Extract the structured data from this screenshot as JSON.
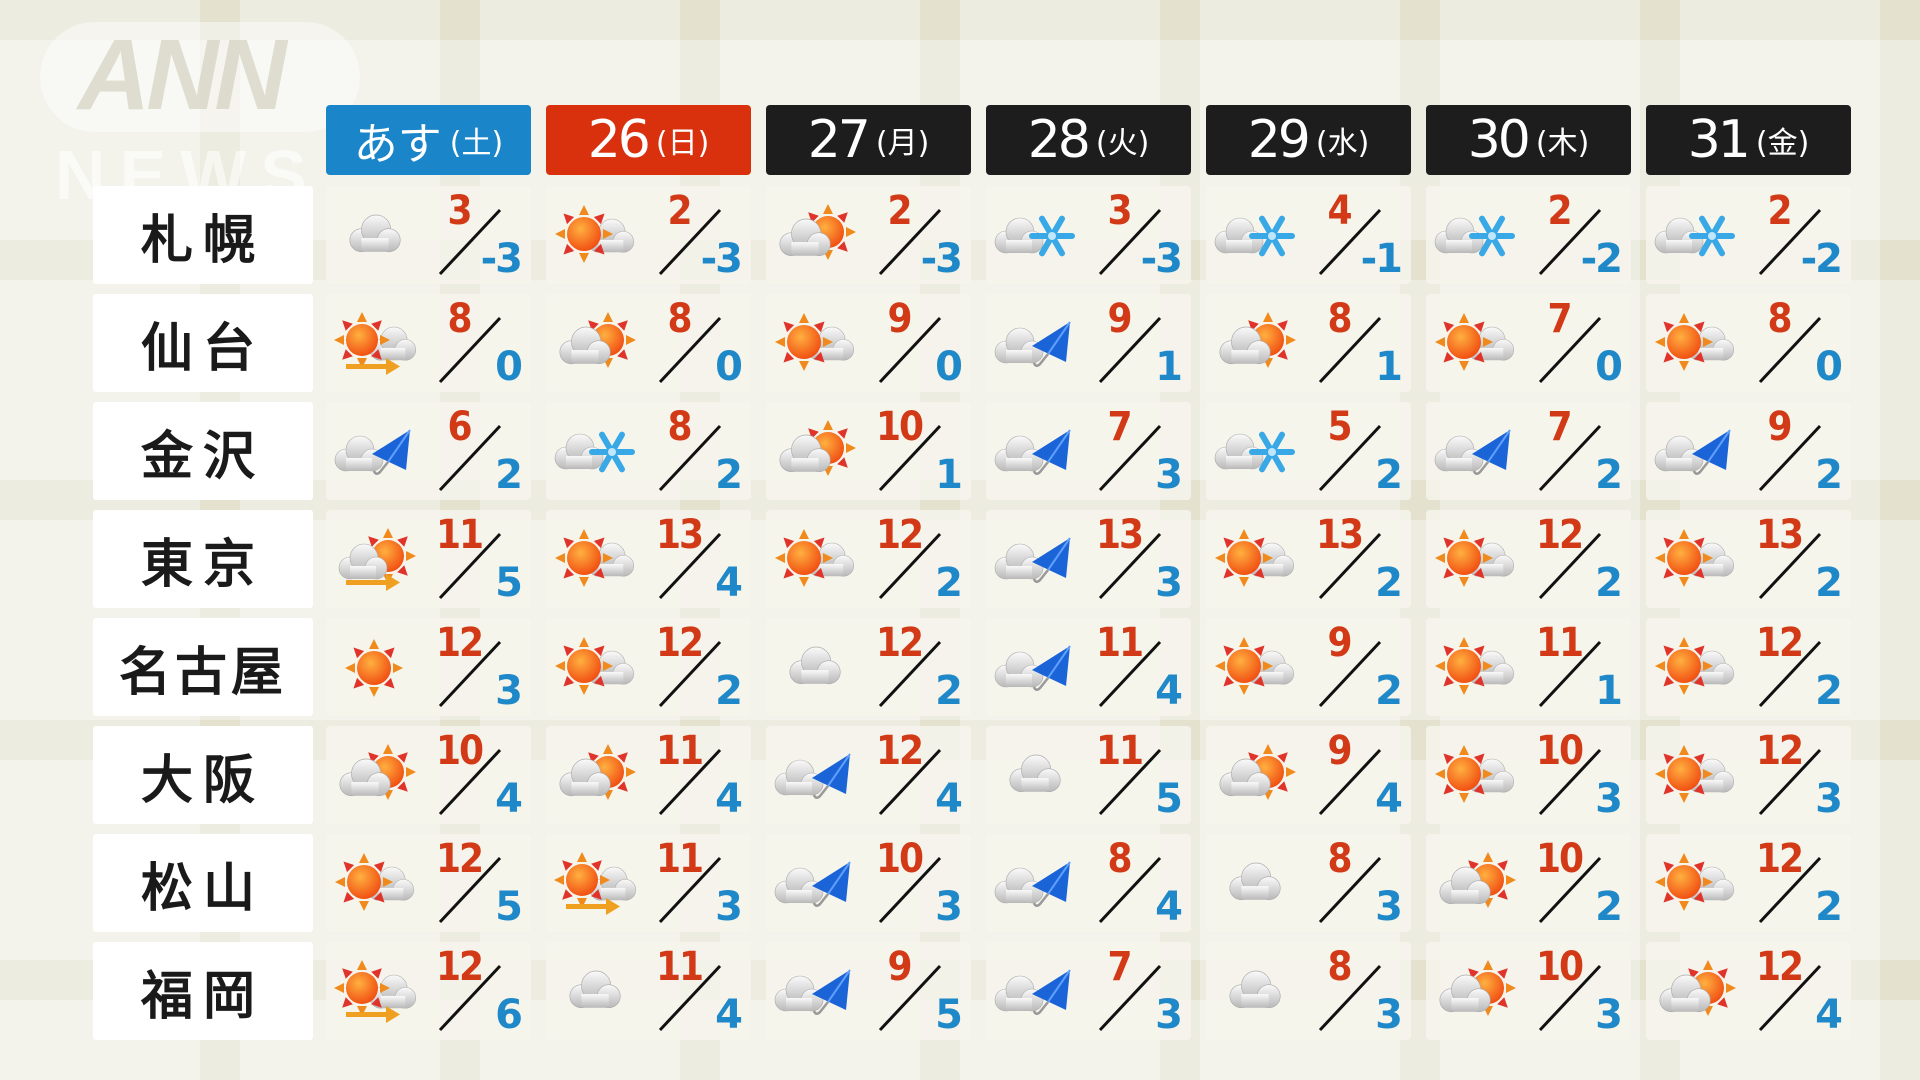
{
  "logo": {
    "line1": "ANN",
    "line2": "NEWS"
  },
  "colors": {
    "today_header": "#1a86c9",
    "sunday_header": "#d9300e",
    "weekday_header": "#1d1d1d",
    "high_temp": "#d23a17",
    "low_temp": "#1f88c8"
  },
  "days": [
    {
      "label": "あす",
      "dow": "(土)",
      "style": "today"
    },
    {
      "label": "26",
      "dow": "(日)",
      "style": "sunday"
    },
    {
      "label": "27",
      "dow": "(月)",
      "style": "weekday"
    },
    {
      "label": "28",
      "dow": "(火)",
      "style": "weekday"
    },
    {
      "label": "29",
      "dow": "(水)",
      "style": "weekday"
    },
    {
      "label": "30",
      "dow": "(木)",
      "style": "weekday"
    },
    {
      "label": "31",
      "dow": "(金)",
      "style": "weekday"
    }
  ],
  "cities": [
    {
      "name": "札幌",
      "forecast": [
        {
          "icon": "cloudy",
          "high": "3",
          "low": "-3"
        },
        {
          "icon": "sun-cloud",
          "high": "2",
          "low": "-3"
        },
        {
          "icon": "cloud-sun",
          "high": "2",
          "low": "-3"
        },
        {
          "icon": "cloud-snow",
          "high": "3",
          "low": "-3"
        },
        {
          "icon": "cloud-snow",
          "high": "4",
          "low": "-1"
        },
        {
          "icon": "cloud-snow",
          "high": "2",
          "low": "-2"
        },
        {
          "icon": "cloud-snow",
          "high": "2",
          "low": "-2"
        }
      ]
    },
    {
      "name": "仙台",
      "forecast": [
        {
          "icon": "sun-then-cloud",
          "high": "8",
          "low": "0"
        },
        {
          "icon": "cloud-sun",
          "high": "8",
          "low": "0"
        },
        {
          "icon": "sun-cloud",
          "high": "9",
          "low": "0"
        },
        {
          "icon": "cloud-rain",
          "high": "9",
          "low": "1"
        },
        {
          "icon": "cloud-sun",
          "high": "8",
          "low": "1"
        },
        {
          "icon": "sun-cloud",
          "high": "7",
          "low": "0"
        },
        {
          "icon": "sun-cloud",
          "high": "8",
          "low": "0"
        }
      ]
    },
    {
      "name": "金沢",
      "forecast": [
        {
          "icon": "cloud-rain",
          "high": "6",
          "low": "2"
        },
        {
          "icon": "cloud-snow",
          "high": "8",
          "low": "2"
        },
        {
          "icon": "cloud-sun",
          "high": "10",
          "low": "1"
        },
        {
          "icon": "cloud-rain",
          "high": "7",
          "low": "3"
        },
        {
          "icon": "cloud-snow",
          "high": "5",
          "low": "2"
        },
        {
          "icon": "cloud-rain",
          "high": "7",
          "low": "2"
        },
        {
          "icon": "cloud-rain",
          "high": "9",
          "low": "2"
        }
      ]
    },
    {
      "name": "東京",
      "forecast": [
        {
          "icon": "cloud-then-sun",
          "high": "11",
          "low": "5"
        },
        {
          "icon": "sun-cloud",
          "high": "13",
          "low": "4"
        },
        {
          "icon": "sun-cloud",
          "high": "12",
          "low": "2"
        },
        {
          "icon": "cloud-rain",
          "high": "13",
          "low": "3"
        },
        {
          "icon": "sun-cloud",
          "high": "13",
          "low": "2"
        },
        {
          "icon": "sun-cloud",
          "high": "12",
          "low": "2"
        },
        {
          "icon": "sun-cloud",
          "high": "13",
          "low": "2"
        }
      ]
    },
    {
      "name": "名古屋",
      "forecast": [
        {
          "icon": "sunny",
          "high": "12",
          "low": "3"
        },
        {
          "icon": "sun-cloud",
          "high": "12",
          "low": "2"
        },
        {
          "icon": "cloudy",
          "high": "12",
          "low": "2"
        },
        {
          "icon": "cloud-rain",
          "high": "11",
          "low": "4"
        },
        {
          "icon": "sun-cloud",
          "high": "9",
          "low": "2"
        },
        {
          "icon": "sun-cloud",
          "high": "11",
          "low": "1"
        },
        {
          "icon": "sun-cloud",
          "high": "12",
          "low": "2"
        }
      ]
    },
    {
      "name": "大阪",
      "forecast": [
        {
          "icon": "cloud-sun",
          "high": "10",
          "low": "4"
        },
        {
          "icon": "cloud-sun",
          "high": "11",
          "low": "4"
        },
        {
          "icon": "cloud-rain",
          "high": "12",
          "low": "4"
        },
        {
          "icon": "cloudy",
          "high": "11",
          "low": "5"
        },
        {
          "icon": "cloud-sun",
          "high": "9",
          "low": "4"
        },
        {
          "icon": "sun-cloud",
          "high": "10",
          "low": "3"
        },
        {
          "icon": "sun-cloud",
          "high": "12",
          "low": "3"
        }
      ]
    },
    {
      "name": "松山",
      "forecast": [
        {
          "icon": "sun-cloud",
          "high": "12",
          "low": "5"
        },
        {
          "icon": "sun-then-cloud",
          "high": "11",
          "low": "3"
        },
        {
          "icon": "cloud-rain",
          "high": "10",
          "low": "3"
        },
        {
          "icon": "cloud-rain",
          "high": "8",
          "low": "4"
        },
        {
          "icon": "cloudy",
          "high": "8",
          "low": "3"
        },
        {
          "icon": "cloud-sun",
          "high": "10",
          "low": "2"
        },
        {
          "icon": "sun-cloud",
          "high": "12",
          "low": "2"
        }
      ]
    },
    {
      "name": "福岡",
      "forecast": [
        {
          "icon": "sun-then-cloud",
          "high": "12",
          "low": "6"
        },
        {
          "icon": "cloudy",
          "high": "11",
          "low": "4"
        },
        {
          "icon": "cloud-rain",
          "high": "9",
          "low": "5"
        },
        {
          "icon": "cloud-rain",
          "high": "7",
          "low": "3"
        },
        {
          "icon": "cloudy",
          "high": "8",
          "low": "3"
        },
        {
          "icon": "cloud-sun",
          "high": "10",
          "low": "3"
        },
        {
          "icon": "cloud-sun",
          "high": "12",
          "low": "4"
        }
      ]
    }
  ]
}
